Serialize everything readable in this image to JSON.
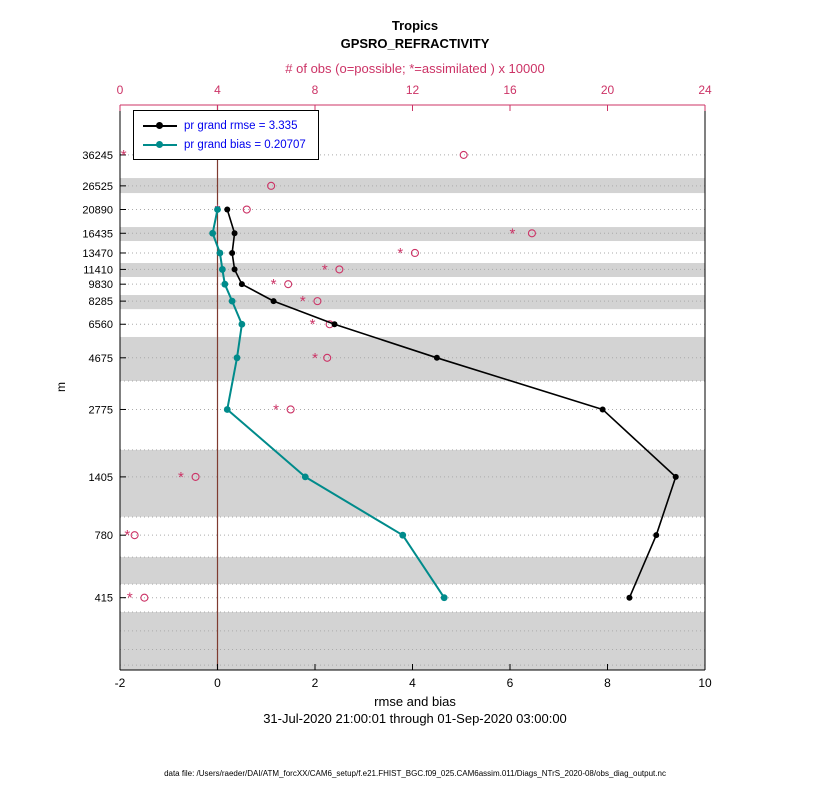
{
  "title": "Tropics",
  "subtitle": "GPSRO_REFRACTIVITY",
  "obs_axis_label": "# of obs (o=possible; *=assimilated ) x 10000",
  "xlabel": "rmse and bias",
  "ylabel": "m",
  "date_range": "31-Jul-2020 21:00:01 through 01-Sep-2020 03:00:00",
  "footer": "data file: /Users/raeder/DAI/ATM_forcXX/CAM6_setup/f.e21.FHIST_BGC.f09_025.CAM6assim.011/Diags_NTrS_2020-08/obs_diag_output.nc",
  "legend": {
    "rmse_label": "pr grand rmse = 3.335",
    "bias_label": "pr grand bias = 0.20707"
  },
  "colors": {
    "rmse": "#000000",
    "bias": "#008B8B",
    "obs": "#CC3366",
    "legend_text": "#0000EE",
    "band": "#D3D3D3",
    "grid": "#AAAAAA",
    "zero_line": "#7F3B30",
    "axis": "#000000"
  },
  "chart_data": {
    "type": "line",
    "title": "Tropics GPSRO_REFRACTIVITY",
    "xlabel": "rmse and bias",
    "ylabel": "m",
    "y_scale": "log",
    "ylim": [
      200,
      60000
    ],
    "x_bottom": {
      "min": -2,
      "max": 10,
      "ticks": [
        -2,
        0,
        2,
        4,
        6,
        8,
        10
      ]
    },
    "x_top": {
      "min": 0,
      "max": 24,
      "ticks": [
        0,
        4,
        8,
        12,
        16,
        20,
        24
      ]
    },
    "levels": [
      36245,
      26525,
      20890,
      16435,
      13470,
      11410,
      9830,
      8285,
      6560,
      4675,
      2775,
      1405,
      780,
      415
    ],
    "series": [
      {
        "name": "pr grand rmse",
        "color_key": "rmse",
        "width": 1.6,
        "dot_r": 3,
        "values": [
          null,
          null,
          0.2,
          0.35,
          0.3,
          0.35,
          0.5,
          1.15,
          2.4,
          4.5,
          7.9,
          9.4,
          9.0,
          8.45
        ]
      },
      {
        "name": "pr grand bias",
        "color_key": "bias",
        "width": 2.0,
        "dot_r": 3.4,
        "values": [
          null,
          null,
          0.0,
          -0.1,
          0.05,
          0.1,
          0.15,
          0.3,
          0.5,
          0.4,
          0.2,
          1.8,
          3.8,
          4.65
        ]
      }
    ],
    "obs_possible": [
      14.1,
      6.2,
      5.2,
      16.9,
      12.1,
      9.0,
      6.9,
      8.1,
      8.6,
      8.5,
      7.0,
      3.1,
      0.6,
      1.0
    ],
    "obs_assimilated": [
      0.15,
      null,
      4.0,
      16.1,
      11.5,
      8.4,
      6.3,
      7.5,
      7.9,
      8.0,
      6.4,
      2.5,
      0.3,
      0.4
    ],
    "shaded_bands": [
      [
        24660,
        28700
      ],
      [
        15200,
        17500
      ],
      [
        10570,
        12170
      ],
      [
        7640,
        8810
      ],
      [
        3700,
        5770
      ],
      [
        940,
        1845
      ],
      [
        476,
        625
      ],
      [
        200,
        359
      ]
    ],
    "extra_gridlines": [
      3700,
      1845,
      937,
      625,
      476,
      359,
      297,
      246,
      210
    ],
    "legend_position": "upper-left",
    "grid": true
  }
}
